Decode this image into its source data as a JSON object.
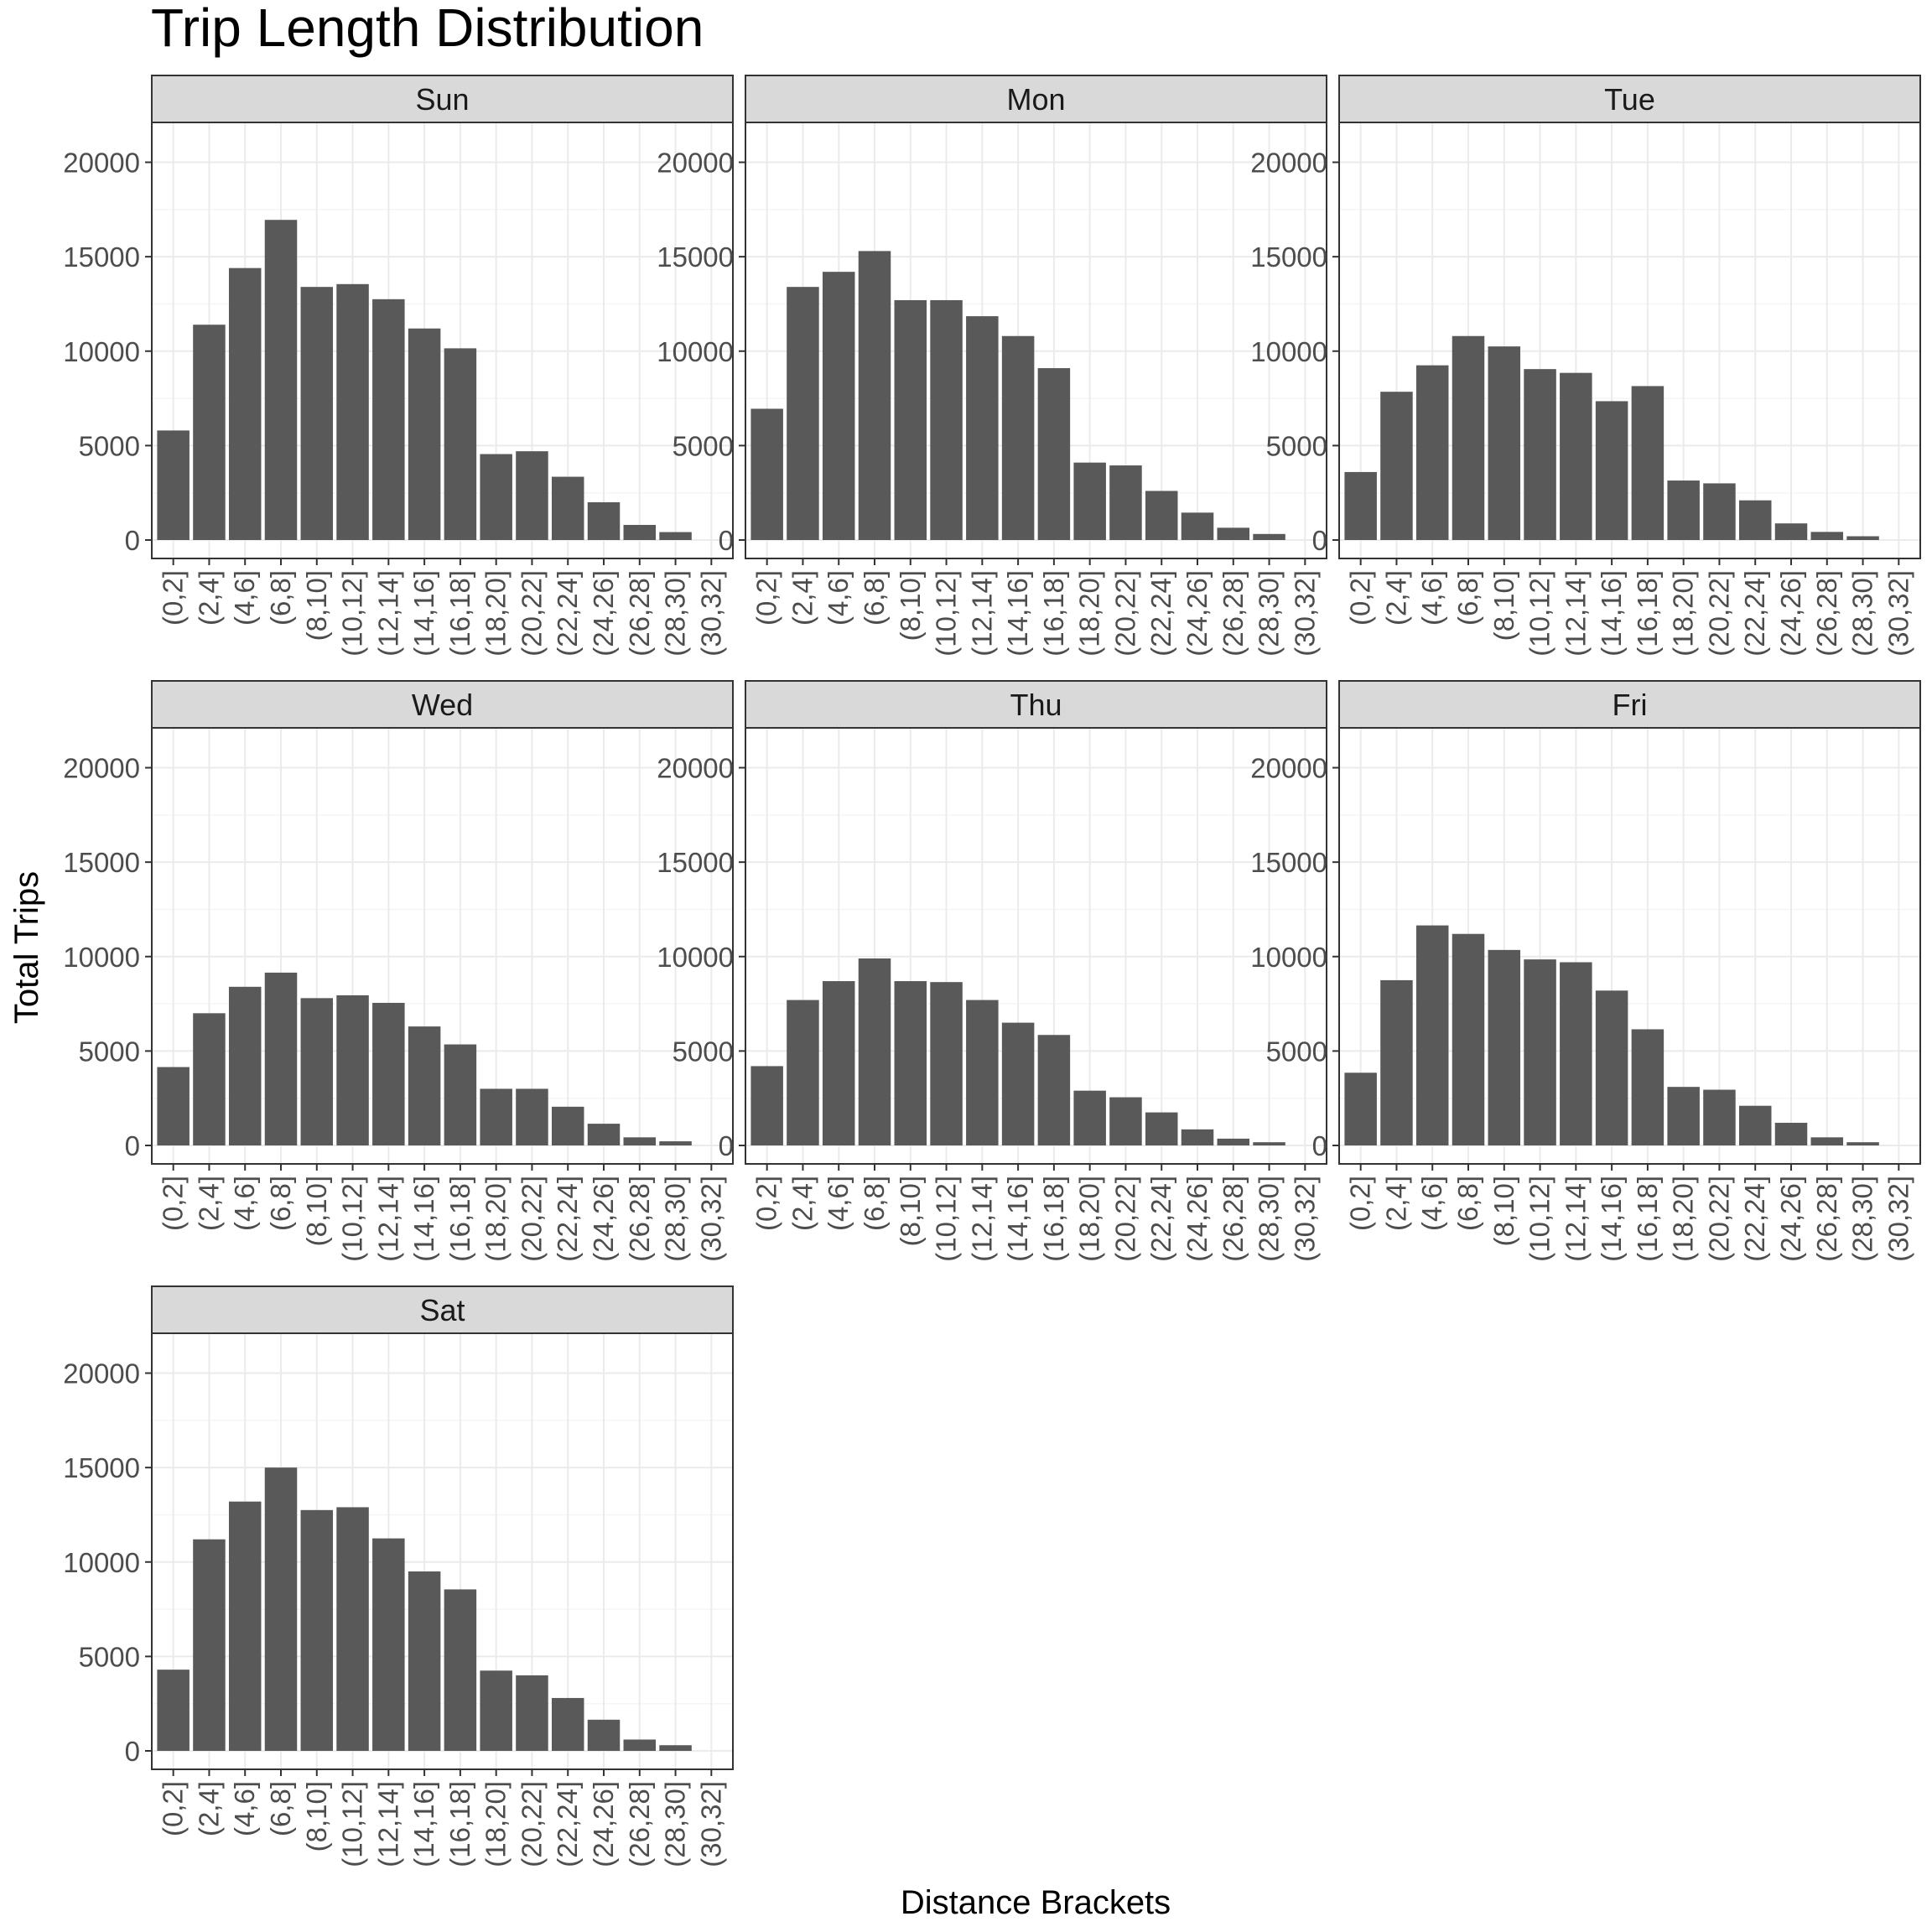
{
  "colors": {
    "bar": "#595959",
    "strip_fill": "#d9d9d9",
    "panel_border": "#333333",
    "grid_major": "#ebebeb",
    "grid_minor": "#f5f5f5",
    "tick_text": "#4d4d4d",
    "background": "#ffffff"
  },
  "chart_data": {
    "type": "bar",
    "title": "Trip Length Distribution",
    "xlabel": "Distance Brackets",
    "ylabel": "Total Trips",
    "ylim": [
      0,
      21000
    ],
    "yticks": [
      0,
      5000,
      10000,
      15000,
      20000
    ],
    "grid": true,
    "legend": "none",
    "layout": "facet_wrap (3 columns, 3 rows)",
    "categories": [
      "(0,2]",
      "(2,4]",
      "(4,6]",
      "(6,8]",
      "(8,10]",
      "(10,12]",
      "(12,14]",
      "(14,16]",
      "(16,18]",
      "(18,20]",
      "(20,22]",
      "(22,24]",
      "(24,26]",
      "(26,28]",
      "(28,30]",
      "(30,32]"
    ],
    "series": [
      {
        "name": "Sun",
        "values": [
          5800,
          11400,
          14400,
          16950,
          13400,
          13550,
          12750,
          11200,
          10150,
          4550,
          4700,
          3350,
          2000,
          800,
          420,
          0
        ]
      },
      {
        "name": "Mon",
        "values": [
          6950,
          13400,
          14200,
          15300,
          12700,
          12700,
          11850,
          10800,
          9100,
          4100,
          3950,
          2600,
          1450,
          650,
          320,
          0
        ]
      },
      {
        "name": "Tue",
        "values": [
          3600,
          7850,
          9250,
          10800,
          10250,
          9050,
          8850,
          7350,
          8150,
          3150,
          3000,
          2100,
          880,
          430,
          200,
          0
        ]
      },
      {
        "name": "Wed",
        "values": [
          4150,
          7000,
          8400,
          9150,
          7800,
          7950,
          7550,
          6300,
          5350,
          3000,
          3000,
          2050,
          1150,
          430,
          220,
          0
        ]
      },
      {
        "name": "Thu",
        "values": [
          4200,
          7700,
          8700,
          9900,
          8700,
          8650,
          7700,
          6500,
          5850,
          2900,
          2550,
          1750,
          850,
          360,
          170,
          0
        ]
      },
      {
        "name": "Fri",
        "values": [
          3850,
          8750,
          11650,
          11200,
          10350,
          9850,
          9700,
          8200,
          6150,
          3100,
          2950,
          2100,
          1200,
          430,
          170,
          0
        ]
      },
      {
        "name": "Sat",
        "values": [
          4300,
          11200,
          13200,
          15000,
          12750,
          12900,
          11250,
          9500,
          8550,
          4250,
          4000,
          2800,
          1650,
          600,
          300,
          0
        ]
      }
    ]
  }
}
